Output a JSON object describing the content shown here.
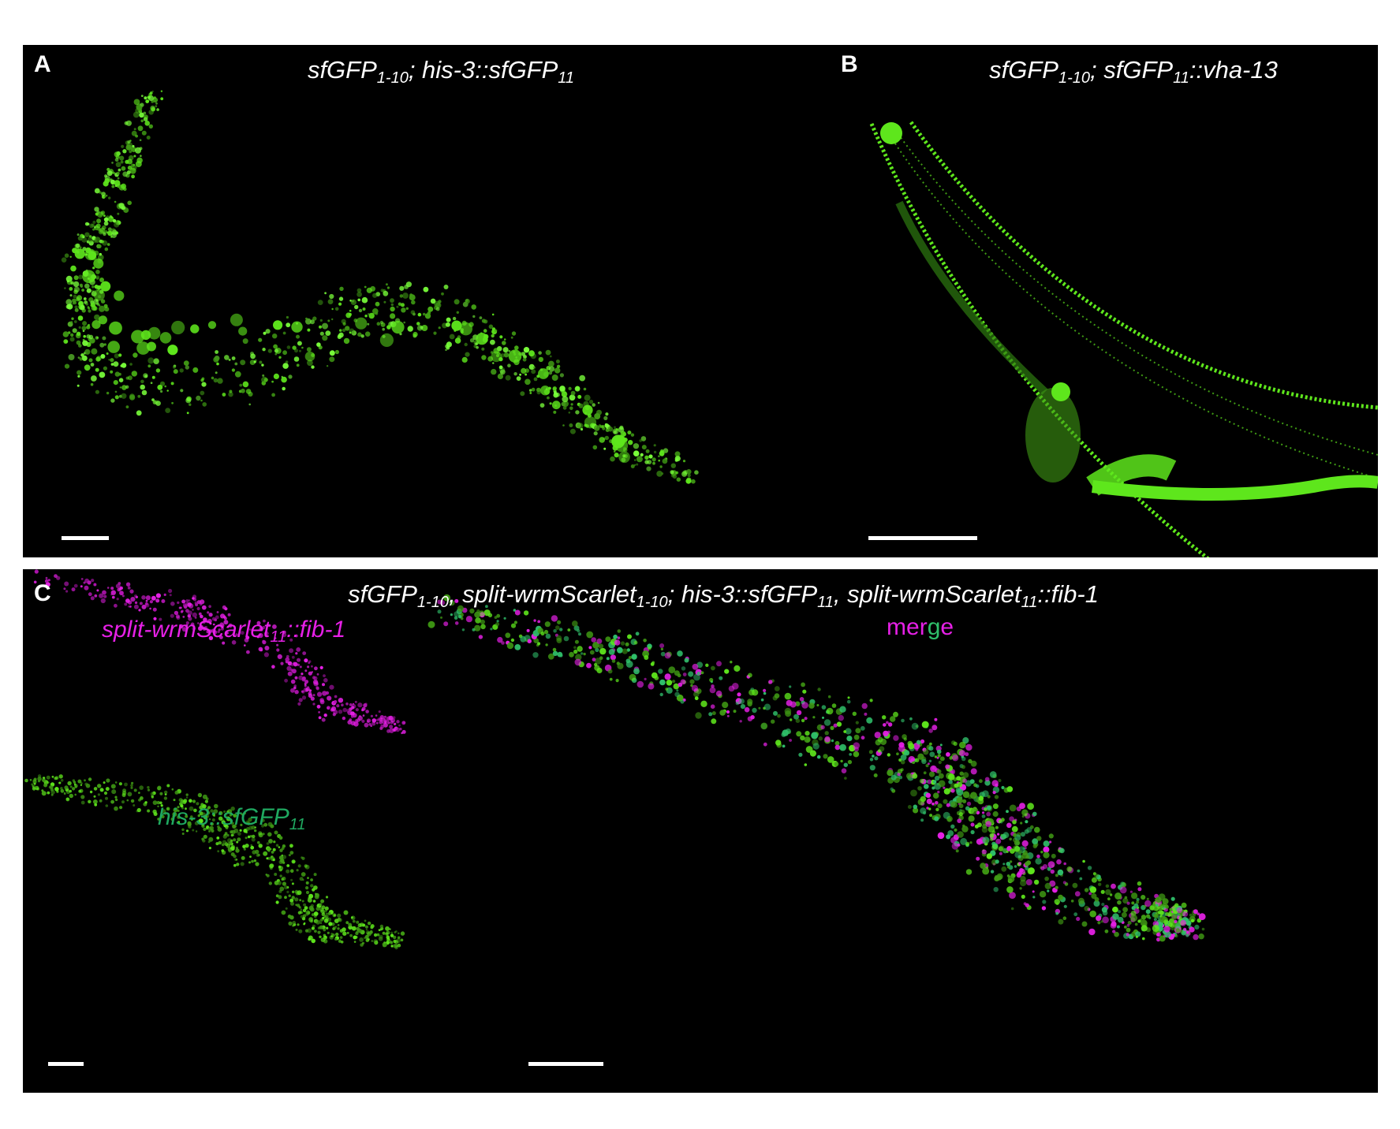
{
  "panels": {
    "a": {
      "label": "A",
      "title": {
        "p1": "sfGFP",
        "s1": "1-10",
        "p2": "; his-3::sfGFP",
        "s2": "11"
      }
    },
    "b": {
      "label": "B",
      "title": {
        "p1": "sfGFP",
        "s1": "1-10",
        "p2": "; sfGFP",
        "s2": "11",
        "p3": "::vha-13"
      }
    },
    "c": {
      "label": "C",
      "title": {
        "p1": "sfGFP",
        "s1": "1-10",
        "p2": ", split-wrmScarlet",
        "s2": "1-10",
        "p3": "; his-3::sfGFP",
        "s3": "11",
        "p4": ", split-wrmScarlet",
        "s4": "11",
        "p5": "::fib-1"
      },
      "channel_magenta": {
        "p1": "split-wrmScarlet",
        "s1": "11",
        "p2": "::fib-1"
      },
      "channel_green": {
        "p1": "his-3::sfGFP",
        "s1": "11"
      },
      "merge": [
        "m",
        "e",
        "r",
        "g",
        "e"
      ]
    }
  },
  "colors": {
    "background": "#000000",
    "gfp": "#5ee61c",
    "scarlet": "#e620e6",
    "merge_green": "#2fbf6a",
    "label_magenta": "#e620e6",
    "label_green": "#1fa860"
  }
}
